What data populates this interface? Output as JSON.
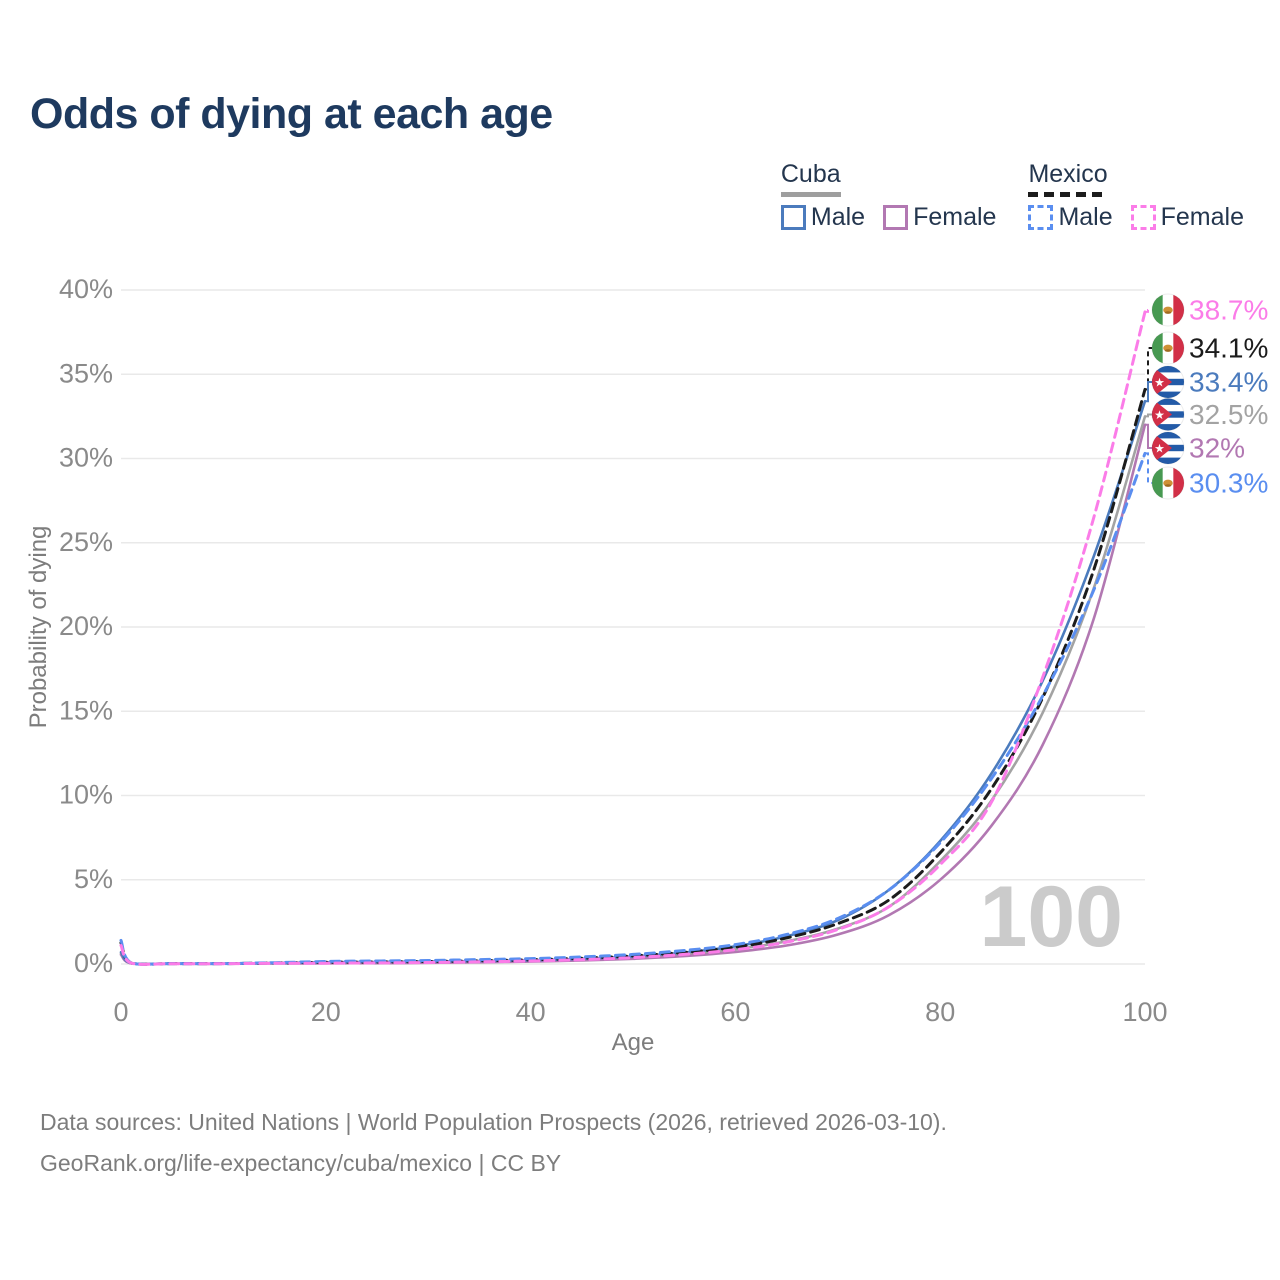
{
  "title": "Odds of dying at each age",
  "watermark_age": "100",
  "legend": {
    "groups": [
      {
        "label": "Cuba",
        "line_style": "solid",
        "rule_color": "#9e9e9e",
        "items": [
          {
            "label": "Male",
            "color": "#4b7bbd"
          },
          {
            "label": "Female",
            "color": "#b278b2"
          }
        ]
      },
      {
        "label": "Mexico",
        "line_style": "dashed",
        "rule_color": "#1c1c1c",
        "items": [
          {
            "label": "Male",
            "color": "#5a8ef0"
          },
          {
            "label": "Female",
            "color": "#fb7ce8"
          }
        ]
      }
    ]
  },
  "chart_data": {
    "type": "line",
    "xlabel": "Age",
    "ylabel": "Probability of dying",
    "xlim": [
      0,
      100
    ],
    "ylim_percent": [
      0,
      40
    ],
    "xticks": [
      0,
      20,
      40,
      60,
      80,
      100
    ],
    "yticks_percent": [
      0,
      5,
      10,
      15,
      20,
      25,
      30,
      35,
      40
    ],
    "grid": "horizontal",
    "x_ages": [
      0,
      1,
      5,
      10,
      15,
      20,
      25,
      30,
      35,
      40,
      45,
      50,
      55,
      60,
      65,
      70,
      75,
      80,
      85,
      90,
      95,
      100
    ],
    "series": [
      {
        "name": "Cuba Both sexes",
        "country": "Cuba",
        "sex": "Both",
        "style": "solid",
        "color": "#a3a3a3",
        "end_label": "32.5%",
        "values": [
          0.62,
          0.045,
          0.018,
          0.018,
          0.045,
          0.07,
          0.085,
          0.105,
          0.135,
          0.18,
          0.26,
          0.38,
          0.57,
          0.88,
          1.35,
          2.1,
          3.4,
          6.1,
          9.7,
          14.9,
          22.3,
          32.5
        ]
      },
      {
        "name": "Cuba Female",
        "country": "Cuba",
        "sex": "Female",
        "style": "solid",
        "color": "#b278b2",
        "end_label": "32%",
        "values": [
          0.55,
          0.04,
          0.015,
          0.015,
          0.03,
          0.04,
          0.05,
          0.07,
          0.1,
          0.14,
          0.21,
          0.31,
          0.47,
          0.72,
          1.1,
          1.75,
          2.9,
          5.0,
          8.2,
          13.0,
          20.5,
          32.0
        ]
      },
      {
        "name": "Cuba Male",
        "country": "Cuba",
        "sex": "Male",
        "style": "solid",
        "color": "#4b7bbd",
        "end_label": "33.4%",
        "values": [
          0.7,
          0.05,
          0.02,
          0.02,
          0.06,
          0.1,
          0.12,
          0.14,
          0.17,
          0.22,
          0.31,
          0.45,
          0.68,
          1.05,
          1.65,
          2.6,
          4.4,
          7.3,
          11.3,
          16.8,
          24.2,
          33.4
        ]
      },
      {
        "name": "Mexico Both sexes",
        "country": "Mexico",
        "sex": "Both",
        "style": "dashed",
        "color": "#1c1c1c",
        "end_label": "34.1%",
        "values": [
          1.25,
          0.06,
          0.022,
          0.022,
          0.06,
          0.1,
          0.12,
          0.15,
          0.19,
          0.25,
          0.34,
          0.48,
          0.69,
          1.0,
          1.55,
          2.4,
          3.8,
          6.6,
          10.4,
          15.8,
          23.4,
          34.1
        ]
      },
      {
        "name": "Mexico Male",
        "country": "Mexico",
        "sex": "Male",
        "style": "dashed",
        "color": "#5a8ef0",
        "end_label": "30.3%",
        "values": [
          1.4,
          0.07,
          0.025,
          0.025,
          0.08,
          0.15,
          0.18,
          0.21,
          0.26,
          0.32,
          0.42,
          0.57,
          0.8,
          1.15,
          1.75,
          2.7,
          4.4,
          7.2,
          11.0,
          15.9,
          22.2,
          30.3
        ]
      },
      {
        "name": "Mexico Female",
        "country": "Mexico",
        "sex": "Female",
        "style": "dashed",
        "color": "#fb7ce8",
        "end_label": "38.7%",
        "values": [
          1.1,
          0.055,
          0.02,
          0.02,
          0.04,
          0.05,
          0.065,
          0.09,
          0.13,
          0.18,
          0.26,
          0.38,
          0.57,
          0.85,
          1.3,
          2.05,
          3.4,
          5.9,
          9.6,
          17.0,
          26.5,
          38.7
        ]
      }
    ],
    "end_label_order_top_to_bottom": [
      "Mexico Female",
      "Mexico Both sexes",
      "Cuba Male",
      "Cuba Both sexes",
      "Cuba Female",
      "Mexico Male"
    ]
  },
  "footer": {
    "line1": "Data sources: United Nations | World Population Prospects (2026, retrieved 2026-03-10).",
    "line2": "GeoRank.org/life-expectancy/cuba/mexico | CC BY"
  }
}
